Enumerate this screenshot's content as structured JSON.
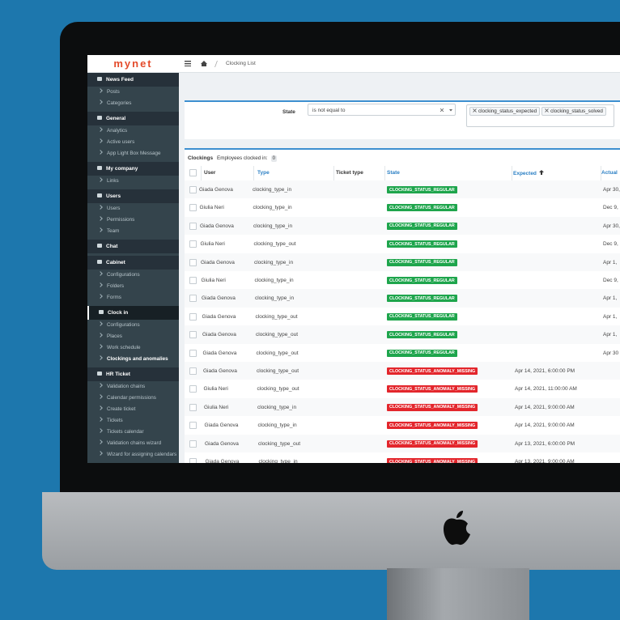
{
  "header": {
    "logo": "mynet",
    "breadcrumb": "Clocking List"
  },
  "sidebar": [
    {
      "title": "News Feed",
      "items": [
        "Posts",
        "Categories"
      ]
    },
    {
      "title": "General",
      "items": [
        "Analytics",
        "Active users",
        "App Light Box Message"
      ]
    },
    {
      "title": "My company",
      "items": [
        "Links"
      ]
    },
    {
      "title": "Users",
      "items": [
        "Users",
        "Permissions",
        "Team"
      ]
    },
    {
      "title": "Chat",
      "items": []
    },
    {
      "title": "Cabinet",
      "items": [
        "Configurations",
        "Folders",
        "Forms"
      ]
    },
    {
      "title": "Clock in",
      "items": [
        "Configurations",
        "Places",
        "Work schedule",
        "Clockings and anomalies"
      ]
    },
    {
      "title": "HR Ticket",
      "items": [
        "Validation chains",
        "Calendar permissions",
        "Create ticket",
        "Tickets",
        "Tickets calendar",
        "Validation chains wizard",
        "Wizard for assigning calendars"
      ]
    }
  ],
  "filter": {
    "label": "State",
    "operator": "is not equal to",
    "values": [
      "clocking_status_expected",
      "clocking_status_solved"
    ]
  },
  "table": {
    "title": "Clockings",
    "subtitle": "Employees clocked in:",
    "count": 0,
    "columns": [
      "User",
      "Type",
      "Ticket type",
      "State",
      "Expected",
      "Actual"
    ],
    "rows": [
      [
        "Giada Genova",
        "clocking_type_in",
        null,
        "CLOCKING_STATUS_REGULAR",
        null,
        "Apr 30,"
      ],
      [
        "Giulia Neri",
        "clocking_type_in",
        null,
        "CLOCKING_STATUS_REGULAR",
        null,
        "Dec 9,"
      ],
      [
        "Giada Genova",
        "clocking_type_in",
        null,
        "CLOCKING_STATUS_REGULAR",
        null,
        "Apr 30,"
      ],
      [
        "Giulia Neri",
        "clocking_type_out",
        null,
        "CLOCKING_STATUS_REGULAR",
        null,
        "Dec 9,"
      ],
      [
        "Giada Genova",
        "clocking_type_in",
        null,
        "CLOCKING_STATUS_REGULAR",
        null,
        "Apr 1,"
      ],
      [
        "Giulia Neri",
        "clocking_type_in",
        null,
        "CLOCKING_STATUS_REGULAR",
        null,
        "Dec 9,"
      ],
      [
        "Giada Genova",
        "clocking_type_in",
        null,
        "CLOCKING_STATUS_REGULAR",
        null,
        "Apr 1,"
      ],
      [
        "Giada Genova",
        "clocking_type_out",
        null,
        "CLOCKING_STATUS_REGULAR",
        null,
        "Apr 1,"
      ],
      [
        "Giada Genova",
        "clocking_type_out",
        null,
        "CLOCKING_STATUS_REGULAR",
        null,
        "Apr 1,"
      ],
      [
        "Giada Genova",
        "clocking_type_out",
        null,
        "CLOCKING_STATUS_REGULAR",
        null,
        "Apr 30"
      ],
      [
        "Giada Genova",
        "clocking_type_out",
        null,
        "CLOCKING_STATUS_ANOMALY_MISSING",
        "Apr 14, 2021, 6:00:00 PM",
        null
      ],
      [
        "Giulia Neri",
        "clocking_type_out",
        null,
        "CLOCKING_STATUS_ANOMALY_MISSING",
        "Apr 14, 2021, 11:00:00 AM",
        null
      ],
      [
        "Giulia Neri",
        "clocking_type_in",
        null,
        "CLOCKING_STATUS_ANOMALY_MISSING",
        "Apr 14, 2021, 9:00:00 AM",
        null
      ],
      [
        "Giada Genova",
        "clocking_type_in",
        null,
        "CLOCKING_STATUS_ANOMALY_MISSING",
        "Apr 14, 2021, 9:00:00 AM",
        null
      ],
      [
        "Giada Genova",
        "clocking_type_out",
        null,
        "CLOCKING_STATUS_ANOMALY_MISSING",
        "Apr 13, 2021, 6:00:00 PM",
        null
      ],
      [
        "Giada Genova",
        "clocking_type_in",
        null,
        "CLOCKING_STATUS_ANOMALY_MISSING",
        "Apr 13, 2021, 9:00:00 AM",
        null
      ]
    ]
  }
}
